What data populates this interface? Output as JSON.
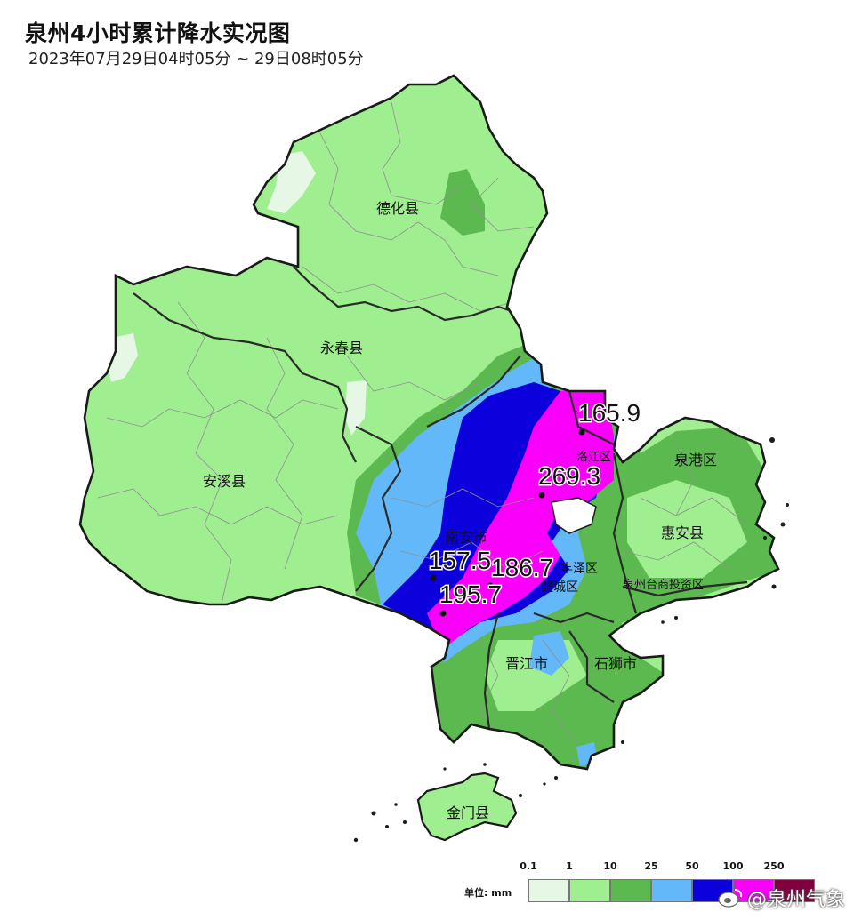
{
  "title": "泉州4小时累计降水实况图",
  "subtitle": "2023年07月29日04时05分 ~ 29日08时05分",
  "map": {
    "regions": [
      "德化县",
      "永春县",
      "安溪县",
      "南安市",
      "泉港区",
      "惠安县",
      "泉州台商投资区",
      "洛江区",
      "丰泽区",
      "鲤城区",
      "晋江市",
      "石狮市",
      "金门县"
    ],
    "stations": [
      "165.9",
      "269.3",
      "157.5",
      "186.7",
      "195.7"
    ]
  },
  "legend": {
    "unit": "单位: mm",
    "thresholds": [
      "0.1",
      "1",
      "10",
      "25",
      "50",
      "100",
      "250"
    ],
    "colors": [
      "#e6f7e6",
      "#9fee8f",
      "#5cb94f",
      "#63b8fa",
      "#0c00dc",
      "#fa00fa",
      "#800040"
    ]
  },
  "watermark": {
    "text": "@泉州气象",
    "icon": "weibo-icon"
  }
}
